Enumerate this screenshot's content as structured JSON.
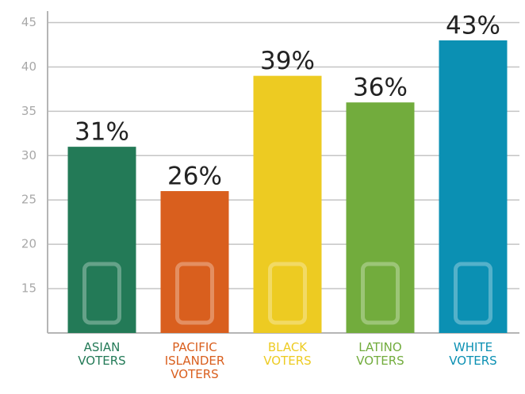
{
  "chart_data": {
    "type": "bar",
    "categories": [
      "ASIAN VOTERS",
      "PACIFIC ISLANDER VOTERS",
      "BLACK VOTERS",
      "LATINO VOTERS",
      "WHITE VOTERS"
    ],
    "values": [
      31,
      26,
      39,
      36,
      43
    ],
    "value_labels": [
      "31%",
      "26%",
      "39%",
      "36%",
      "43%"
    ],
    "colors": [
      "#237a57",
      "#d95f1e",
      "#edcb22",
      "#72ac3d",
      "#0b90b3"
    ],
    "ylim": [
      10,
      46.3
    ],
    "yticks": [
      15,
      20,
      25,
      30,
      35,
      40,
      45
    ],
    "grid": true
  }
}
